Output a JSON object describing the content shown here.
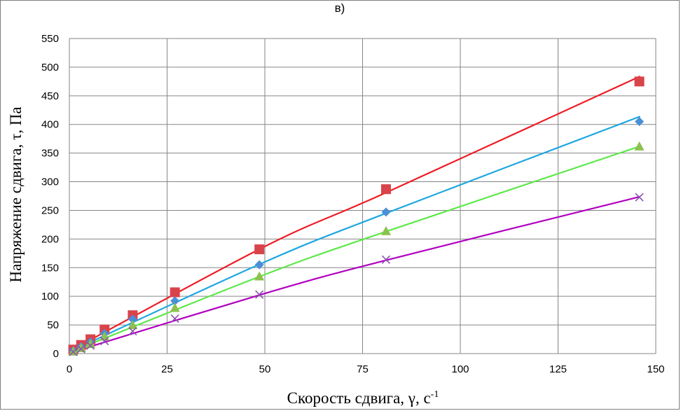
{
  "chart_data": {
    "type": "scatter",
    "panel_label": "в)",
    "xlabel": "Скорость сдвига, γ, с",
    "xlabel_sup": "-1",
    "ylabel": "Напряжение сдвига, τ, Па",
    "xlim": [
      0,
      150
    ],
    "ylim": [
      0,
      550
    ],
    "x_ticks": [
      0,
      25,
      50,
      75,
      100,
      125,
      150
    ],
    "y_ticks": [
      0,
      50,
      100,
      150,
      200,
      250,
      300,
      350,
      400,
      450,
      500,
      550
    ],
    "grid": true,
    "series": [
      {
        "marker": "square",
        "marker_color": "#d9434a",
        "line_color": "#ee1c25",
        "x": [
          1,
          3,
          5.4,
          9,
          16.2,
          27,
          48.6,
          81,
          145.8
        ],
        "y": [
          7,
          15,
          25,
          42,
          67,
          107,
          182,
          287,
          475
        ],
        "fit": [
          [
            0,
            4
          ],
          [
            50,
            187
          ],
          [
            81,
            281
          ],
          [
            146,
            484
          ]
        ]
      },
      {
        "marker": "diamond",
        "marker_color": "#4a8fd8",
        "line_color": "#1fa7e0",
        "x": [
          1,
          3,
          5.4,
          9,
          16.2,
          27,
          48.6,
          81,
          145.8
        ],
        "y": [
          5,
          12,
          20,
          35,
          60,
          92,
          155,
          247,
          405
        ],
        "fit": [
          [
            0,
            3
          ],
          [
            50,
            160
          ],
          [
            81,
            245
          ],
          [
            146,
            414
          ]
        ]
      },
      {
        "marker": "triangle",
        "marker_color": "#8ec14e",
        "line_color": "#5de84a",
        "x": [
          1,
          3,
          5.4,
          9,
          16.2,
          27,
          48.6,
          81,
          145.8
        ],
        "y": [
          4,
          10,
          17,
          30,
          50,
          80,
          135,
          214,
          362
        ],
        "fit": [
          [
            0,
            2
          ],
          [
            50,
            138
          ],
          [
            81,
            213
          ],
          [
            146,
            362
          ]
        ]
      },
      {
        "marker": "cross",
        "marker_color": "#8a53b1",
        "line_color": "#b000c0",
        "x": [
          1,
          3,
          5.4,
          9,
          16.2,
          27,
          48.6,
          81,
          145.8
        ],
        "y": [
          3,
          8,
          14,
          22,
          39,
          61,
          103,
          164,
          273
        ],
        "fit": [
          [
            0,
            1
          ],
          [
            50,
            105
          ],
          [
            81,
            163
          ],
          [
            146,
            274
          ]
        ]
      }
    ]
  }
}
